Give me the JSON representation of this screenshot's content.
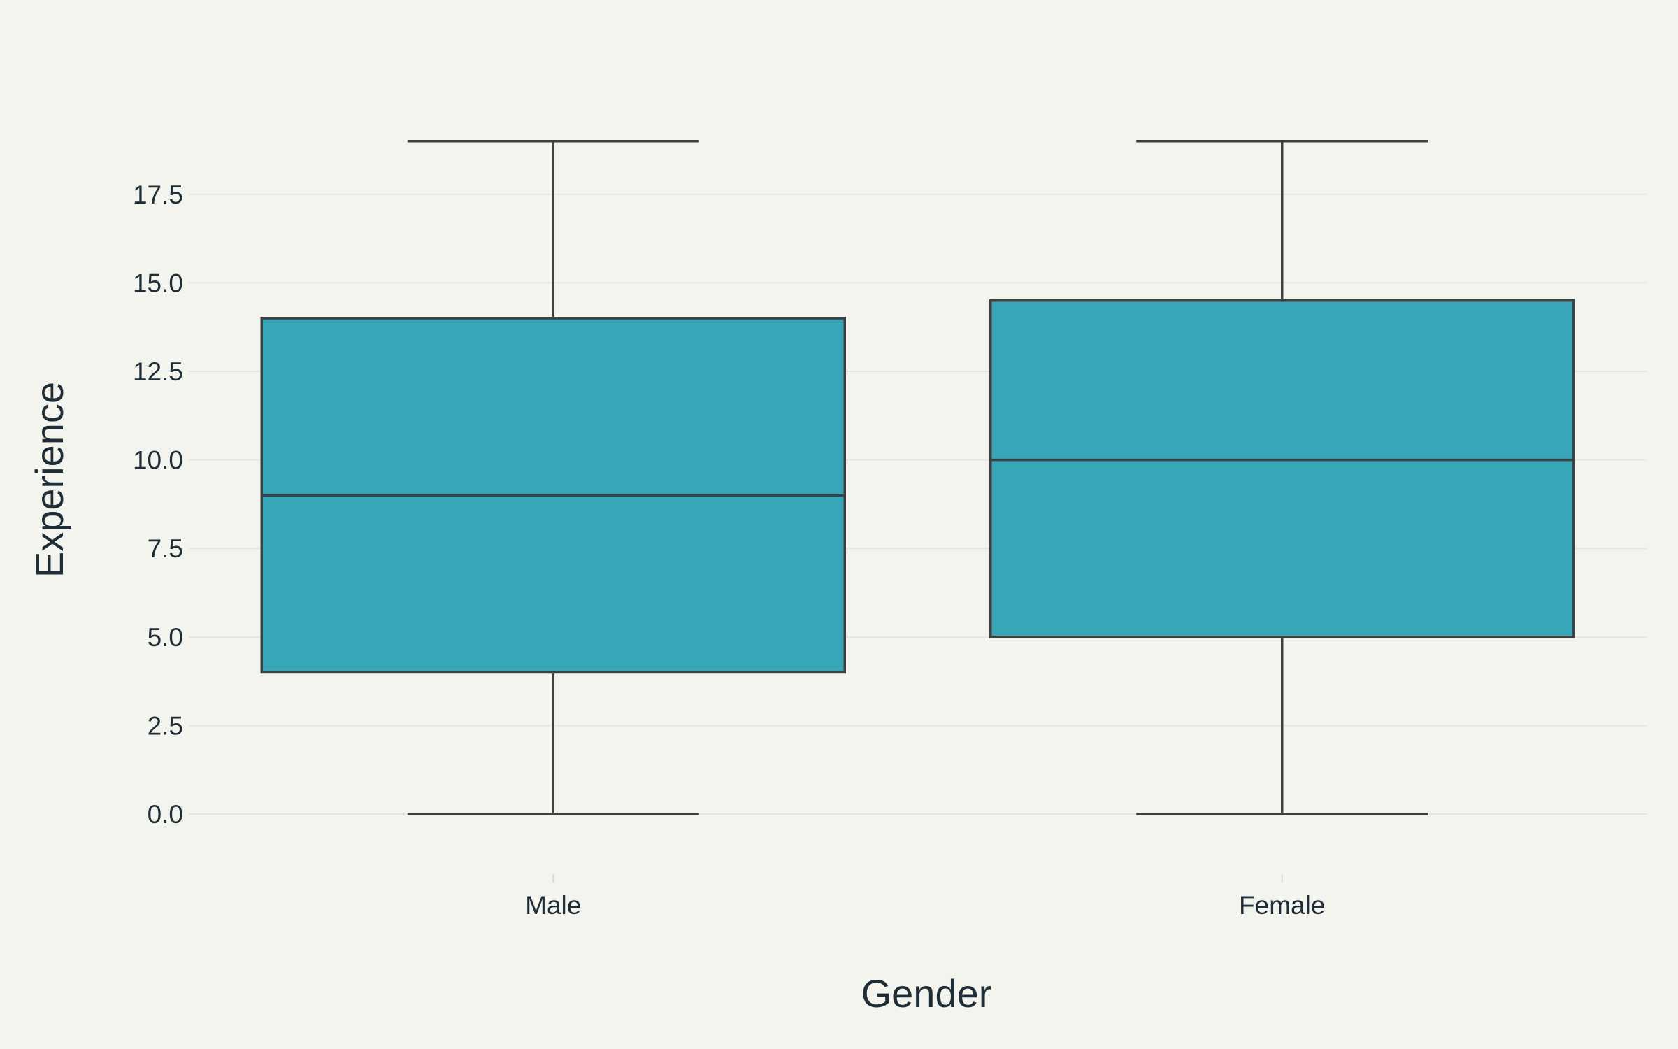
{
  "chart_data": {
    "type": "box",
    "xlabel": "Gender",
    "ylabel": "Experience",
    "categories": [
      "Male",
      "Female"
    ],
    "ylim": [
      -1.5,
      21.8
    ],
    "yticks": [
      0,
      2.5,
      5,
      7.5,
      10,
      12.5,
      15,
      17.5
    ],
    "ytick_labels": [
      "0.0",
      "2.5",
      "5.0",
      "7.5",
      "10.0",
      "12.5",
      "15.0",
      "17.5"
    ],
    "grid": true,
    "boxes": [
      {
        "category": "Male",
        "min": 0,
        "q1": 4,
        "median": 9,
        "q3": 14,
        "max": 19
      },
      {
        "category": "Female",
        "min": 0,
        "q1": 5,
        "median": 10,
        "q3": 14.5,
        "max": 19
      }
    ],
    "colors": {
      "box_fill": "#36a7b7",
      "box_stroke": "#404040",
      "background": "#f4f4ef",
      "grid": "#e6e6e1",
      "text": "#1e2d36"
    }
  }
}
